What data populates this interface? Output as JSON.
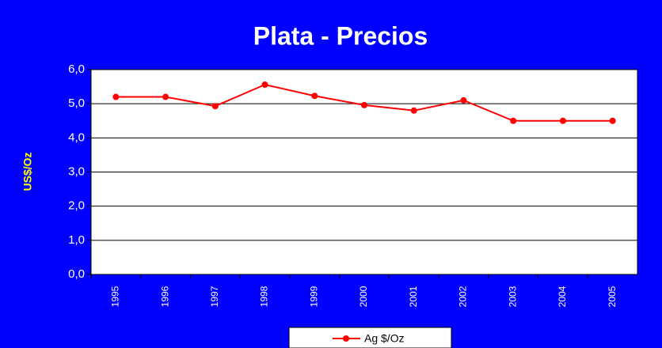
{
  "chart_data": {
    "type": "line",
    "title": "Plata - Precios",
    "y_label": "US$/Oz",
    "categories": [
      "1995",
      "1996",
      "1997",
      "1998",
      "1999",
      "2000",
      "2001",
      "2002",
      "2003",
      "2004",
      "2005"
    ],
    "series": [
      {
        "name": "Ag $/Oz",
        "color": "#ff0000",
        "values": [
          5.2,
          5.2,
          4.93,
          5.56,
          5.23,
          4.96,
          4.8,
          5.1,
          4.5,
          4.5,
          4.5
        ]
      }
    ],
    "ylim": [
      0,
      6
    ],
    "yticks": [
      {
        "value": 0,
        "label": "0,0"
      },
      {
        "value": 1,
        "label": "1,0"
      },
      {
        "value": 2,
        "label": "2,0"
      },
      {
        "value": 3,
        "label": "3,0"
      },
      {
        "value": 4,
        "label": "4,0"
      },
      {
        "value": 5,
        "label": "5,0"
      },
      {
        "value": 6,
        "label": "6,0"
      }
    ],
    "grid": true,
    "legend": "bottom"
  }
}
